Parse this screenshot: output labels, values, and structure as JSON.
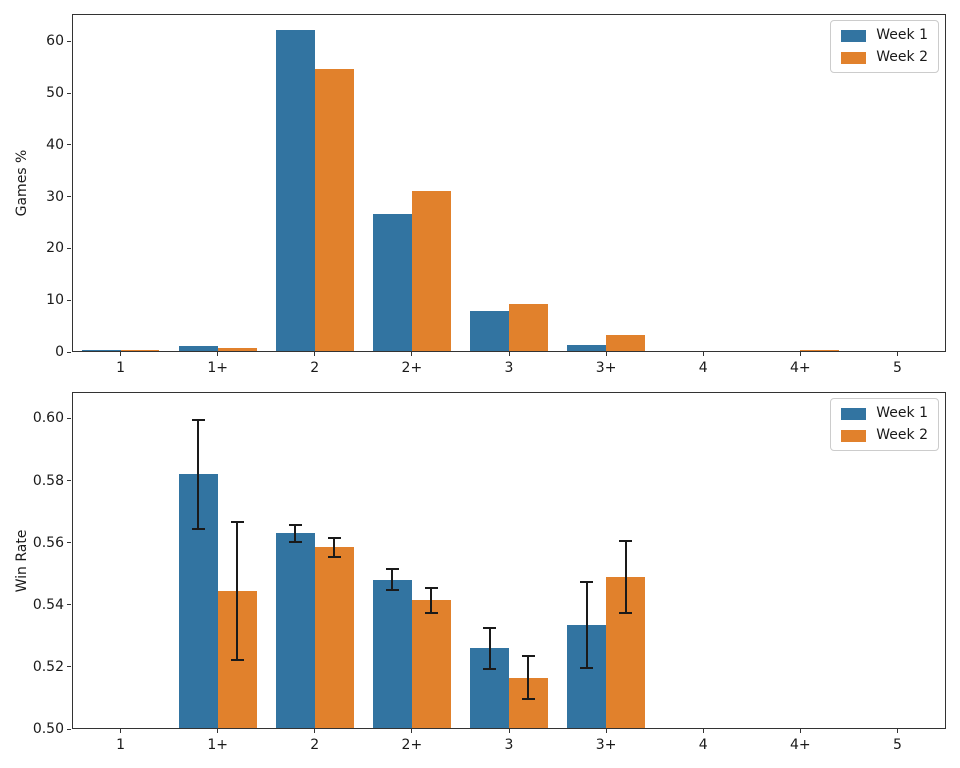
{
  "figure": {
    "background": "#ffffff"
  },
  "chart_data": [
    {
      "type": "bar",
      "title": "",
      "xlabel": "",
      "ylabel": "Games %",
      "grid": false,
      "categories": [
        "1",
        "1+",
        "2",
        "2+",
        "3",
        "3+",
        "4",
        "4+",
        "5"
      ],
      "series": [
        {
          "name": "Week 1",
          "color": "#3274a1",
          "values": [
            0.4,
            1.1,
            62.2,
            26.6,
            8.0,
            1.3,
            0.2,
            0.2,
            0.05
          ]
        },
        {
          "name": "Week 2",
          "color": "#e1812c",
          "values": [
            0.3,
            0.85,
            54.7,
            31.1,
            9.3,
            3.3,
            0.1,
            0.35,
            0.15
          ]
        }
      ],
      "ylim": [
        0,
        65.3
      ],
      "yticks": [
        0,
        10,
        20,
        30,
        40,
        50,
        60
      ],
      "ytick_labels": [
        "0",
        "10",
        "20",
        "30",
        "40",
        "50",
        "60"
      ],
      "legend": {
        "position": "upper right",
        "entries": [
          "Week 1",
          "Week 2"
        ]
      }
    },
    {
      "type": "bar",
      "title": "",
      "xlabel": "",
      "ylabel": "Win Rate",
      "grid": false,
      "error_bars": true,
      "error_color": "#1a1a1a",
      "categories": [
        "1",
        "1+",
        "2",
        "2+",
        "3",
        "3+",
        "4",
        "4+",
        "5"
      ],
      "series": [
        {
          "name": "Week 1",
          "color": "#3274a1",
          "values": [
            null,
            0.582,
            0.563,
            0.548,
            0.526,
            0.5335,
            null,
            null,
            null
          ],
          "errors": [
            null,
            0.0175,
            0.0027,
            0.0034,
            0.0066,
            0.0139,
            null,
            null,
            null
          ]
        },
        {
          "name": "Week 2",
          "color": "#e1812c",
          "values": [
            null,
            0.5445,
            0.5585,
            0.5415,
            0.5165,
            0.549,
            null,
            null,
            null
          ],
          "errors": [
            null,
            0.0222,
            0.003,
            0.004,
            0.0069,
            0.0116,
            null,
            null,
            null
          ]
        }
      ],
      "ylim": [
        0.5,
        0.6085
      ],
      "yticks": [
        0.5,
        0.52,
        0.54,
        0.56,
        0.58,
        0.6
      ],
      "ytick_labels": [
        "0.50",
        "0.52",
        "0.54",
        "0.56",
        "0.58",
        "0.60"
      ],
      "legend": {
        "position": "upper right",
        "entries": [
          "Week 1",
          "Week 2"
        ]
      }
    }
  ]
}
